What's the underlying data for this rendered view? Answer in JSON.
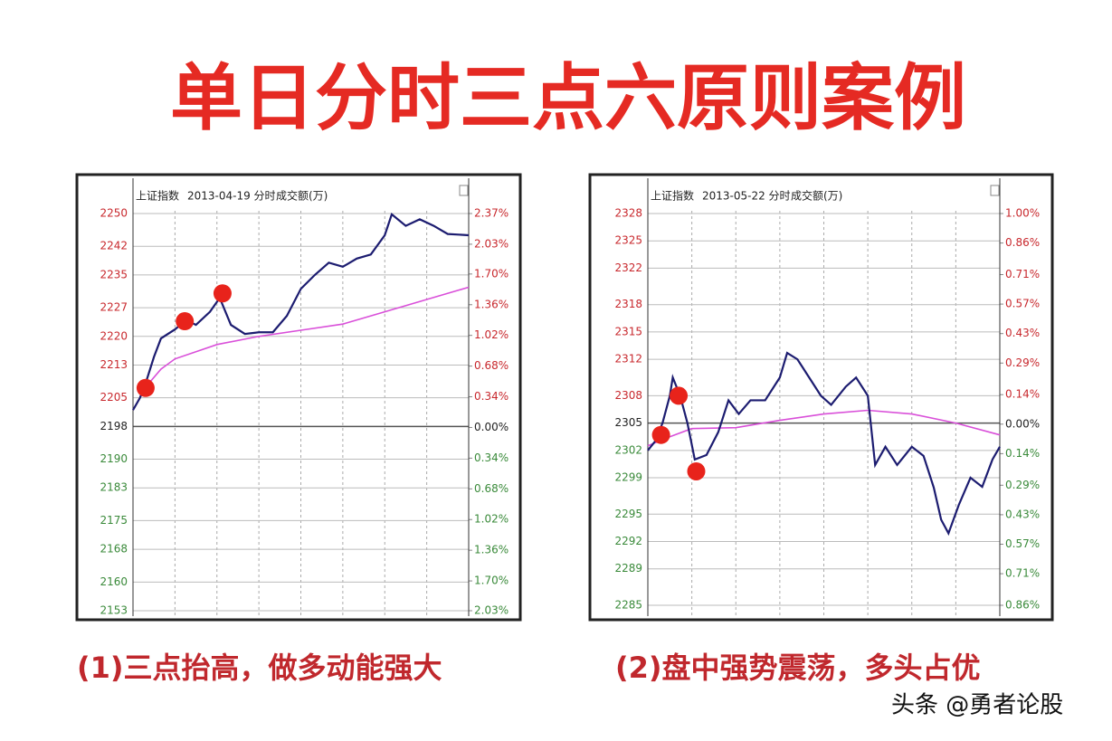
{
  "title": "单日分时三点六原则案例",
  "watermark": "头条 @勇者论股",
  "chart_data": [
    {
      "type": "line",
      "index_name": "上证指数",
      "date": "2013-04-19 分时",
      "volume_label": "成交额(万)",
      "caption": "(1)三点抬高，做多动能强大",
      "xlim": [
        0,
        240
      ],
      "xticks": [
        0,
        30,
        60,
        90,
        120,
        150,
        180,
        210,
        240
      ],
      "ylim": [
        2153,
        2250
      ],
      "yticks": [
        2250,
        2242,
        2235,
        2227,
        2220,
        2213,
        2205,
        2198,
        2190,
        2183,
        2175,
        2168,
        2160,
        2153
      ],
      "y2lim": [
        -2.03,
        2.37
      ],
      "y2ticks": [
        {
          "value": 2.37,
          "label": "2.37%"
        },
        {
          "value": 2.03,
          "label": "2.03%"
        },
        {
          "value": 1.7,
          "label": "1.70%"
        },
        {
          "value": 1.36,
          "label": "1.36%"
        },
        {
          "value": 1.02,
          "label": "1.02%"
        },
        {
          "value": 0.68,
          "label": "0.68%"
        },
        {
          "value": 0.34,
          "label": "0.34%"
        },
        {
          "value": 0,
          "label": "0.00%"
        },
        {
          "value": -0.34,
          "label": "0.34%"
        },
        {
          "value": -0.68,
          "label": "0.68%"
        },
        {
          "value": -1.02,
          "label": "1.02%"
        },
        {
          "value": -1.36,
          "label": "1.36%"
        },
        {
          "value": -1.7,
          "label": "1.70%"
        },
        {
          "value": -2.03,
          "label": "2.03%"
        }
      ],
      "up_color": "#c8282d",
      "flat_color": "#222222",
      "down_color": "#3a8a3a",
      "series": [
        {
          "color": "#1c1c70",
          "x": [
            0,
            5,
            10,
            15,
            20,
            30,
            38,
            45,
            55,
            62,
            70,
            80,
            90,
            100,
            110,
            120,
            130,
            140,
            150,
            160,
            170,
            180,
            185,
            195,
            205,
            215,
            225,
            240
          ],
          "values": [
            2202,
            2205,
            2209.6,
            2215,
            2219.5,
            2221.7,
            2224,
            2222.8,
            2226,
            2229.4,
            2222.8,
            2220.6,
            2221,
            2221,
            2225,
            2231.6,
            2235,
            2238,
            2237,
            2239,
            2240,
            2244.7,
            2249.8,
            2247,
            2248.6,
            2247,
            2245,
            2244.7
          ]
        },
        {
          "color": "#d94fd9",
          "x": [
            0,
            10,
            20,
            30,
            60,
            90,
            120,
            150,
            180,
            210,
            240
          ],
          "values": [
            2202,
            2208,
            2212,
            2214.5,
            2218,
            2220,
            2221.5,
            2223,
            2226,
            2229,
            2232
          ]
        }
      ],
      "highlights": {
        "color": "#e8231b",
        "x": [
          9,
          37,
          64
        ],
        "values": [
          2207.4,
          2223.7,
          2230.5
        ]
      }
    },
    {
      "type": "line",
      "index_name": "上证指数",
      "date": "2013-05-22 分时",
      "volume_label": "成交额(万)",
      "caption": "(2)盘中强势震荡，多头占优",
      "xlim": [
        0,
        240
      ],
      "xticks": [
        0,
        30,
        60,
        90,
        120,
        150,
        180,
        210,
        240
      ],
      "ylim": [
        2285,
        2328
      ],
      "yticks": [
        2328,
        2325,
        2322,
        2318,
        2315,
        2312,
        2308,
        2305,
        2302,
        2299,
        2295,
        2292,
        2289,
        2285
      ],
      "y2lim": [
        -0.86,
        1.0
      ],
      "y2ticks": [
        {
          "value": 1.0,
          "label": "1.00%"
        },
        {
          "value": 0.86,
          "label": "0.86%"
        },
        {
          "value": 0.71,
          "label": "0.71%"
        },
        {
          "value": 0.57,
          "label": "0.57%"
        },
        {
          "value": 0.43,
          "label": "0.43%"
        },
        {
          "value": 0.29,
          "label": "0.29%"
        },
        {
          "value": 0.14,
          "label": "0.14%"
        },
        {
          "value": 0,
          "label": "0.00%"
        },
        {
          "value": -0.14,
          "label": "0.14%"
        },
        {
          "value": -0.29,
          "label": "0.29%"
        },
        {
          "value": -0.43,
          "label": "0.43%"
        },
        {
          "value": -0.57,
          "label": "0.57%"
        },
        {
          "value": -0.71,
          "label": "0.71%"
        },
        {
          "value": -0.86,
          "label": "0.86%"
        }
      ],
      "up_color": "#c8282d",
      "flat_color": "#222222",
      "down_color": "#3a8a3a",
      "series": [
        {
          "color": "#1c1c70",
          "x": [
            0,
            5,
            10,
            15,
            17,
            22,
            27,
            32,
            40,
            48,
            55,
            62,
            70,
            80,
            90,
            95,
            102,
            110,
            118,
            125,
            135,
            142,
            150,
            155,
            162,
            170,
            180,
            188,
            195,
            200,
            205,
            212,
            220,
            228,
            235,
            240
          ],
          "values": [
            2302,
            2303,
            2305,
            2308,
            2310,
            2308,
            2305,
            2301,
            2301.5,
            2304,
            2307.5,
            2306,
            2307.5,
            2307.5,
            2310,
            2312.7,
            2312,
            2310,
            2308,
            2307,
            2309,
            2310,
            2308,
            2300.4,
            2302.4,
            2300.4,
            2302.4,
            2301.4,
            2297.9,
            2294.4,
            2292.9,
            2296,
            2299,
            2298,
            2301,
            2302.4
          ]
        },
        {
          "color": "#d94fd9",
          "x": [
            0,
            15,
            30,
            60,
            90,
            120,
            150,
            180,
            210,
            240
          ],
          "values": [
            2302.5,
            2303.5,
            2304.4,
            2304.5,
            2305.3,
            2306,
            2306.4,
            2306,
            2305,
            2303.7
          ]
        }
      ],
      "highlights": {
        "color": "#e8231b",
        "x": [
          9,
          21,
          33
        ],
        "values": [
          2303.7,
          2308,
          2299.7
        ]
      }
    }
  ]
}
